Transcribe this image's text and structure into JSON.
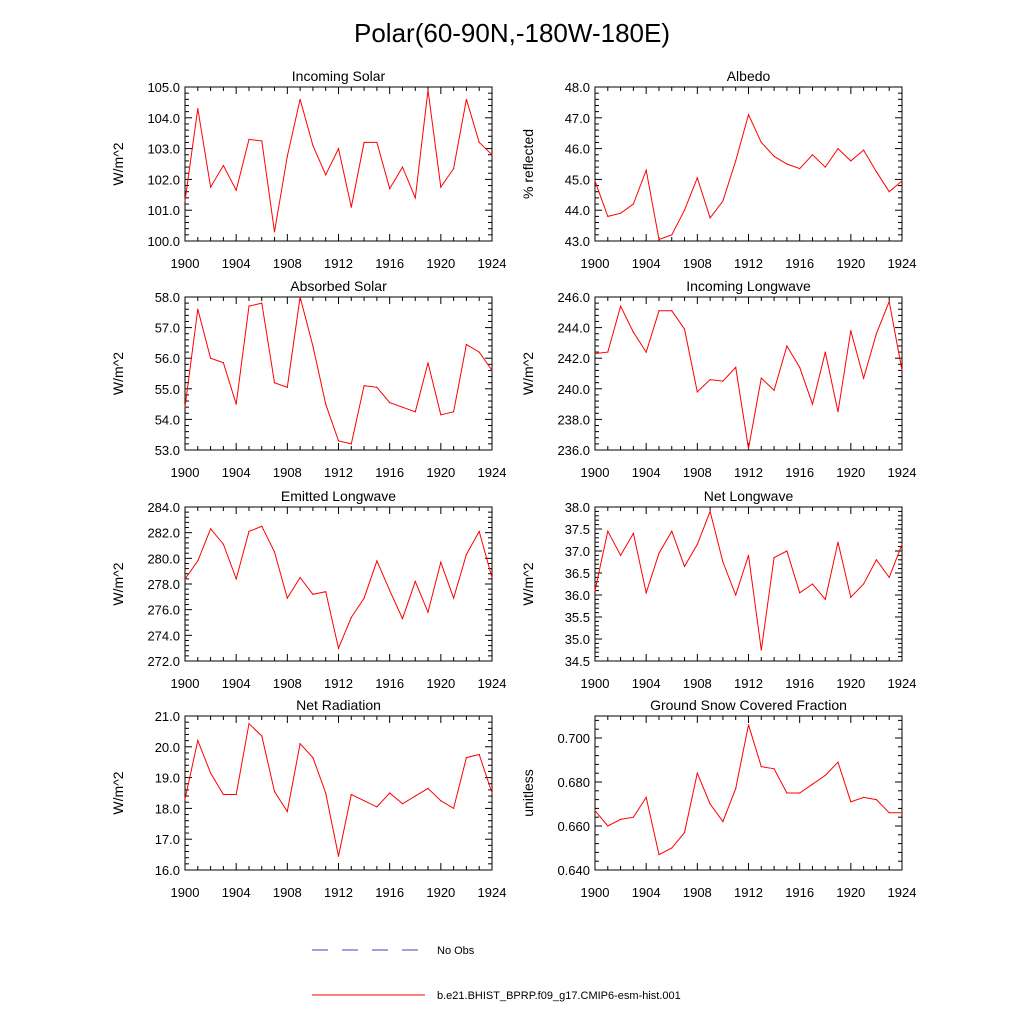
{
  "figure": {
    "title": "Polar(60-90N,-180W-180E)",
    "legend": [
      {
        "label": "No Obs",
        "style": "dashed",
        "color": "#4040c0"
      },
      {
        "label": "b.e21.BHIST_BPRP.f09_g17.CMIP6-esm-hist.001",
        "style": "solid",
        "color": "#ff0000"
      }
    ],
    "line_color": "#ff0000"
  },
  "chart_data": [
    {
      "type": "line",
      "title": "Incoming Solar",
      "ylabel": "W/m^2",
      "xlabel": "",
      "ylim": [
        100.0,
        105.0
      ],
      "yticks": [
        "100.0",
        "101.0",
        "102.0",
        "103.0",
        "104.0",
        "105.0"
      ],
      "xticks": [
        "1900",
        "1904",
        "1908",
        "1912",
        "1916",
        "1920",
        "1924"
      ],
      "xlim": [
        1900,
        1924
      ],
      "x": [
        1900,
        1901,
        1902,
        1903,
        1904,
        1905,
        1906,
        1907,
        1908,
        1909,
        1910,
        1911,
        1912,
        1913,
        1914,
        1915,
        1916,
        1917,
        1918,
        1919,
        1920,
        1921,
        1922,
        1923,
        1924
      ],
      "values": [
        101.3,
        104.3,
        101.75,
        102.45,
        101.65,
        103.3,
        103.25,
        100.3,
        102.75,
        104.6,
        103.1,
        102.15,
        103.0,
        101.1,
        103.2,
        103.2,
        101.7,
        102.4,
        101.4,
        104.9,
        101.75,
        102.35,
        104.6,
        103.2,
        102.8
      ]
    },
    {
      "type": "line",
      "title": "Albedo",
      "ylabel": "% reflected",
      "xlabel": "",
      "ylim": [
        43.0,
        48.0
      ],
      "yticks": [
        "43.0",
        "44.0",
        "45.0",
        "46.0",
        "47.0",
        "48.0"
      ],
      "xticks": [
        "1900",
        "1904",
        "1908",
        "1912",
        "1916",
        "1920",
        "1924"
      ],
      "xlim": [
        1900,
        1924
      ],
      "x": [
        1900,
        1901,
        1902,
        1903,
        1904,
        1905,
        1906,
        1907,
        1908,
        1909,
        1910,
        1911,
        1912,
        1913,
        1914,
        1915,
        1916,
        1917,
        1918,
        1919,
        1920,
        1921,
        1922,
        1923,
        1924
      ],
      "values": [
        44.95,
        43.8,
        43.9,
        44.2,
        45.3,
        43.05,
        43.2,
        44.0,
        45.05,
        43.75,
        44.3,
        45.6,
        47.1,
        46.2,
        45.75,
        45.5,
        45.35,
        45.8,
        45.4,
        46.0,
        45.6,
        45.95,
        45.25,
        44.6,
        44.95
      ]
    },
    {
      "type": "line",
      "title": "Absorbed Solar",
      "ylabel": "W/m^2",
      "xlabel": "",
      "ylim": [
        53.0,
        58.0
      ],
      "yticks": [
        "53.0",
        "54.0",
        "55.0",
        "56.0",
        "57.0",
        "58.0"
      ],
      "xticks": [
        "1900",
        "1904",
        "1908",
        "1912",
        "1916",
        "1920",
        "1924"
      ],
      "xlim": [
        1900,
        1924
      ],
      "x": [
        1900,
        1901,
        1902,
        1903,
        1904,
        1905,
        1906,
        1907,
        1908,
        1909,
        1910,
        1911,
        1912,
        1913,
        1914,
        1915,
        1916,
        1917,
        1918,
        1919,
        1920,
        1921,
        1922,
        1923,
        1924
      ],
      "values": [
        54.4,
        57.6,
        56.0,
        55.85,
        54.5,
        57.7,
        57.8,
        55.2,
        55.05,
        58.0,
        56.4,
        54.5,
        53.3,
        53.2,
        55.1,
        55.05,
        54.55,
        54.4,
        54.25,
        55.85,
        54.15,
        54.25,
        56.45,
        56.2,
        55.6
      ]
    },
    {
      "type": "line",
      "title": "Incoming Longwave",
      "ylabel": "W/m^2",
      "xlabel": "",
      "ylim": [
        236.0,
        246.0
      ],
      "yticks": [
        "236.0",
        "238.0",
        "240.0",
        "242.0",
        "244.0",
        "246.0"
      ],
      "xticks": [
        "1900",
        "1904",
        "1908",
        "1912",
        "1916",
        "1920",
        "1924"
      ],
      "xlim": [
        1900,
        1924
      ],
      "x": [
        1900,
        1901,
        1902,
        1903,
        1904,
        1905,
        1906,
        1907,
        1908,
        1909,
        1910,
        1911,
        1912,
        1913,
        1914,
        1915,
        1916,
        1917,
        1918,
        1919,
        1920,
        1921,
        1922,
        1923,
        1924
      ],
      "values": [
        242.3,
        242.4,
        245.4,
        243.7,
        242.4,
        245.1,
        245.1,
        243.9,
        239.8,
        240.6,
        240.5,
        241.4,
        236.1,
        240.7,
        239.9,
        242.8,
        241.4,
        239.0,
        242.4,
        238.5,
        243.8,
        240.7,
        243.6,
        245.7,
        241.2
      ]
    },
    {
      "type": "line",
      "title": "Emitted Longwave",
      "ylabel": "W/m^2",
      "xlabel": "",
      "ylim": [
        272.0,
        284.0
      ],
      "yticks": [
        "272.0",
        "274.0",
        "276.0",
        "278.0",
        "280.0",
        "282.0",
        "284.0"
      ],
      "xticks": [
        "1900",
        "1904",
        "1908",
        "1912",
        "1916",
        "1920",
        "1924"
      ],
      "xlim": [
        1900,
        1924
      ],
      "x": [
        1900,
        1901,
        1902,
        1903,
        1904,
        1905,
        1906,
        1907,
        1908,
        1909,
        1910,
        1911,
        1912,
        1913,
        1914,
        1915,
        1916,
        1917,
        1918,
        1919,
        1920,
        1921,
        1922,
        1923,
        1924
      ],
      "values": [
        278.4,
        279.8,
        282.3,
        281.1,
        278.4,
        282.1,
        282.5,
        280.5,
        276.9,
        278.5,
        277.2,
        277.4,
        273.0,
        275.4,
        276.9,
        279.8,
        277.5,
        275.3,
        278.2,
        275.8,
        279.7,
        276.9,
        280.3,
        282.1,
        278.5
      ]
    },
    {
      "type": "line",
      "title": "Net Longwave",
      "ylabel": "W/m^2",
      "xlabel": "",
      "ylim": [
        34.5,
        38.0
      ],
      "yticks": [
        "34.5",
        "35.0",
        "35.5",
        "36.0",
        "36.5",
        "37.0",
        "37.5",
        "38.0"
      ],
      "xticks": [
        "1900",
        "1904",
        "1908",
        "1912",
        "1916",
        "1920",
        "1924"
      ],
      "xlim": [
        1900,
        1924
      ],
      "x": [
        1900,
        1901,
        1902,
        1903,
        1904,
        1905,
        1906,
        1907,
        1908,
        1909,
        1910,
        1911,
        1912,
        1913,
        1914,
        1915,
        1916,
        1917,
        1918,
        1919,
        1920,
        1921,
        1922,
        1923,
        1924
      ],
      "values": [
        36.1,
        37.45,
        36.9,
        37.4,
        36.05,
        36.95,
        37.45,
        36.65,
        37.15,
        37.9,
        36.75,
        36.0,
        36.9,
        34.75,
        36.85,
        37.0,
        36.05,
        36.25,
        35.9,
        37.2,
        35.95,
        36.25,
        36.8,
        36.4,
        37.15
      ]
    },
    {
      "type": "line",
      "title": "Net Radiation",
      "ylabel": "W/m^2",
      "xlabel": "",
      "ylim": [
        16.0,
        21.0
      ],
      "yticks": [
        "16.0",
        "17.0",
        "18.0",
        "19.0",
        "20.0",
        "21.0"
      ],
      "xticks": [
        "1900",
        "1904",
        "1908",
        "1912",
        "1916",
        "1920",
        "1924"
      ],
      "xlim": [
        1900,
        1924
      ],
      "x": [
        1900,
        1901,
        1902,
        1903,
        1904,
        1905,
        1906,
        1907,
        1908,
        1909,
        1910,
        1911,
        1912,
        1913,
        1914,
        1915,
        1916,
        1917,
        1918,
        1919,
        1920,
        1921,
        1922,
        1923,
        1924
      ],
      "values": [
        18.3,
        20.2,
        19.15,
        18.45,
        18.45,
        20.75,
        20.35,
        18.55,
        17.9,
        20.1,
        19.65,
        18.5,
        16.45,
        18.45,
        18.25,
        18.05,
        18.5,
        18.15,
        18.4,
        18.65,
        18.25,
        18.0,
        19.65,
        19.75,
        18.5
      ]
    },
    {
      "type": "line",
      "title": "Ground Snow Covered Fraction",
      "ylabel": "unitless",
      "xlabel": "",
      "ylim": [
        0.64,
        0.71
      ],
      "yticks": [
        "0.640",
        "0.660",
        "0.680",
        "0.700"
      ],
      "xticks": [
        "1900",
        "1904",
        "1908",
        "1912",
        "1916",
        "1920",
        "1924"
      ],
      "xlim": [
        1900,
        1924
      ],
      "x": [
        1900,
        1901,
        1902,
        1903,
        1904,
        1905,
        1906,
        1907,
        1908,
        1909,
        1910,
        1911,
        1912,
        1913,
        1914,
        1915,
        1916,
        1917,
        1918,
        1919,
        1920,
        1921,
        1922,
        1923,
        1924
      ],
      "values": [
        0.667,
        0.66,
        0.663,
        0.664,
        0.673,
        0.647,
        0.65,
        0.657,
        0.684,
        0.67,
        0.662,
        0.677,
        0.706,
        0.687,
        0.686,
        0.675,
        0.675,
        0.679,
        0.683,
        0.689,
        0.671,
        0.673,
        0.672,
        0.666,
        0.666
      ],
      "ytick_values": [
        0.64,
        0.66,
        0.68,
        0.7
      ]
    }
  ]
}
